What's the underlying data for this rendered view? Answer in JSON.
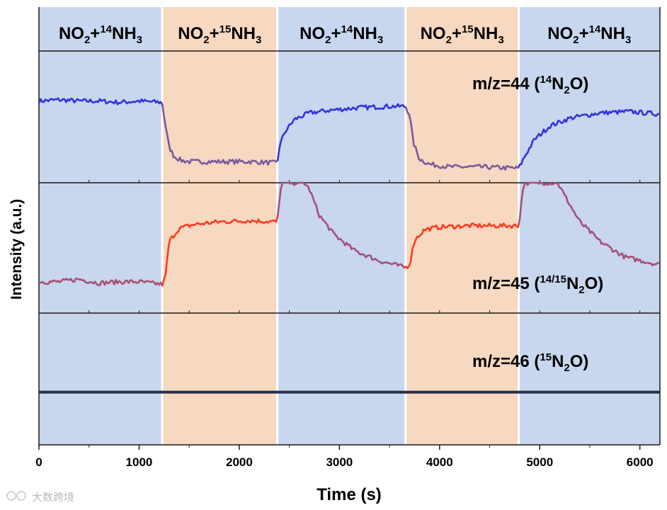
{
  "chart_data": {
    "type": "line",
    "xlabel": "Time (s)",
    "ylabel": "Intensity (a.u.)",
    "xlim": [
      0,
      6200
    ],
    "ylim": [
      0,
      1
    ],
    "grid": false,
    "x_ticks": [
      "0",
      "1000",
      "2000",
      "3000",
      "4000",
      "5000",
      "6000"
    ],
    "x_tick_values": [
      0,
      1000,
      2000,
      3000,
      4000,
      5000,
      6000
    ],
    "regions": [
      {
        "start": 0,
        "end": 1230,
        "label": "NO2+14NH3",
        "base": "NO",
        "sub": "2",
        "mid": "+",
        "sup": "14",
        "tail": "NH",
        "sub2": "3",
        "color": "#c8d6ee"
      },
      {
        "start": 1230,
        "end": 2380,
        "label": "NO2+15NH3",
        "base": "NO",
        "sub": "2",
        "mid": "+",
        "sup": "15",
        "tail": "NH",
        "sub2": "3",
        "color": "#f7d8c0"
      },
      {
        "start": 2380,
        "end": 3660,
        "label": "NO2+14NH3",
        "base": "NO",
        "sub": "2",
        "mid": "+",
        "sup": "14",
        "tail": "NH",
        "sub2": "3",
        "color": "#c8d6ee"
      },
      {
        "start": 3660,
        "end": 4790,
        "label": "NO2+15NH3",
        "base": "NO",
        "sub": "2",
        "mid": "+",
        "sup": "15",
        "tail": "NH",
        "sub2": "3",
        "color": "#f7d8c0"
      },
      {
        "start": 4790,
        "end": 6200,
        "label": "NO2+14NH3",
        "base": "NO",
        "sub": "2",
        "mid": "+",
        "sup": "14",
        "tail": "NH",
        "sub2": "3",
        "color": "#c8d6ee"
      }
    ],
    "series": [
      {
        "name": "m/z=44 (14N2O)",
        "ann_main": "m/z=44 (",
        "ann_sup": "14",
        "ann_mid": "N",
        "ann_sub": "2",
        "ann_tail": "O)",
        "color_start": "#3333dd",
        "color_end": "#7a5a9e",
        "panel": 0,
        "ylim": [
          0,
          1
        ],
        "x": [
          0,
          200,
          400,
          600,
          800,
          1000,
          1230,
          1260,
          1300,
          1350,
          1420,
          1500,
          1650,
          1850,
          2100,
          2380,
          2400,
          2450,
          2550,
          2700,
          2900,
          3200,
          3500,
          3660,
          3700,
          3740,
          3800,
          3900,
          4100,
          4400,
          4790,
          4850,
          4950,
          5100,
          5300,
          5600,
          5900,
          6200
        ],
        "y": [
          0.62,
          0.63,
          0.62,
          0.62,
          0.61,
          0.62,
          0.61,
          0.45,
          0.27,
          0.2,
          0.17,
          0.16,
          0.16,
          0.16,
          0.16,
          0.15,
          0.27,
          0.38,
          0.48,
          0.53,
          0.55,
          0.57,
          0.58,
          0.58,
          0.52,
          0.3,
          0.18,
          0.14,
          0.12,
          0.12,
          0.11,
          0.2,
          0.33,
          0.43,
          0.49,
          0.53,
          0.54,
          0.52
        ]
      },
      {
        "name": "m/z=45 (14/15N2O)",
        "ann_main": "m/z=45 (",
        "ann_sup": "14/15",
        "ann_mid": "N",
        "ann_sub": "2",
        "ann_tail": "O)",
        "color_start": "#ff3b20",
        "color_end": "#a4507a",
        "panel": 1,
        "ylim": [
          0,
          1
        ],
        "x": [
          0,
          200,
          400,
          600,
          800,
          1000,
          1230,
          1260,
          1300,
          1400,
          1550,
          1800,
          2100,
          2380,
          2400,
          2420,
          2650,
          2700,
          2800,
          2950,
          3150,
          3400,
          3660,
          3700,
          3750,
          3850,
          4000,
          4300,
          4600,
          4790,
          4810,
          4840,
          5180,
          5250,
          5400,
          5600,
          5850,
          6200
        ],
        "y": [
          0.24,
          0.24,
          0.26,
          0.23,
          0.24,
          0.24,
          0.22,
          0.26,
          0.55,
          0.65,
          0.68,
          0.7,
          0.71,
          0.7,
          0.85,
          1.0,
          1.0,
          0.95,
          0.75,
          0.6,
          0.48,
          0.4,
          0.35,
          0.37,
          0.56,
          0.64,
          0.66,
          0.67,
          0.67,
          0.67,
          0.8,
          1.0,
          1.0,
          0.9,
          0.7,
          0.55,
          0.43,
          0.37
        ]
      },
      {
        "name": "m/z=46 (15N2O)",
        "ann_main": "m/z=46 (",
        "ann_sup": "15",
        "ann_mid": "N",
        "ann_sub": "2",
        "ann_tail": "O)",
        "color_start": "#262f45",
        "color_end": "#262f45",
        "panel": 2,
        "ylim": [
          0,
          1
        ],
        "x": [
          0,
          6200
        ],
        "y": [
          0.4,
          0.4
        ]
      }
    ]
  },
  "watermark": "大数跨境"
}
